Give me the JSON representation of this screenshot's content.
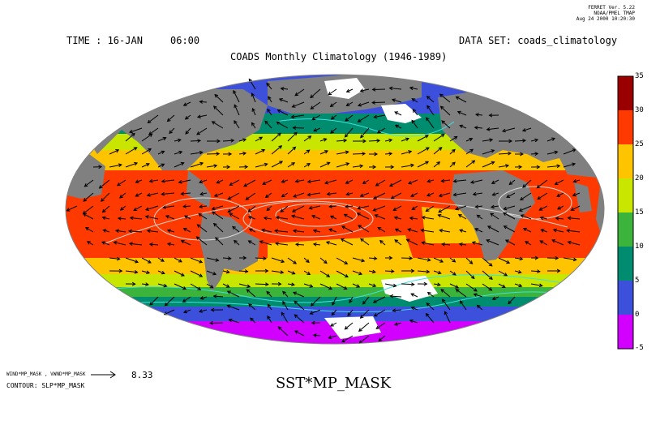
{
  "header": {
    "version_line1": "FERRET Ver. 5.22",
    "version_line2": "NOAA/PMEL TMAP",
    "version_line3": "Aug 24 2000 10:20:30",
    "time_label": "TIME : 16-JAN",
    "time_hour": "06:00",
    "dataset_label": "DATA SET: coads_climatology",
    "title": "COADS Monthly Climatology (1946-1989)"
  },
  "footer": {
    "vector_label": "WIND*MP_MASK , VWND*MP_MASK",
    "vector_scale": "8.33",
    "contour_label": "CONTOUR: SLP*MP_MASK",
    "plot_variable": "SST*MP_MASK"
  },
  "colorbar": {
    "labels": [
      "35",
      "30",
      "25",
      "20",
      "15",
      "10",
      "5",
      "0",
      "-5"
    ],
    "colors": [
      "#9b0000",
      "#ff3a00",
      "#ffc400",
      "#c8e600",
      "#3cb43c",
      "#008c6e",
      "#3c50dc",
      "#d200ff"
    ]
  },
  "map": {
    "projection": "hammer",
    "land_color": "#808080",
    "contour_color": "#d8d8d8",
    "polar_contour_color": "#40e0e0"
  }
}
